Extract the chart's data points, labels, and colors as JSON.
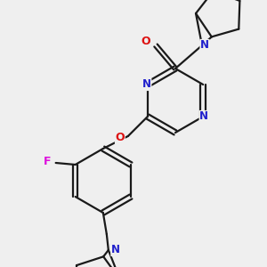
{
  "bg_color": "#efefef",
  "bond_color": "#1a1a1a",
  "N_color": "#2020cc",
  "O_color": "#dd1111",
  "F_color": "#dd11dd",
  "lw": 1.6,
  "dbo": 0.028,
  "xlim": [
    0,
    3.0
  ],
  "ylim": [
    0,
    3.0
  ],
  "figsize": [
    3.0,
    3.0
  ],
  "dpi": 100
}
